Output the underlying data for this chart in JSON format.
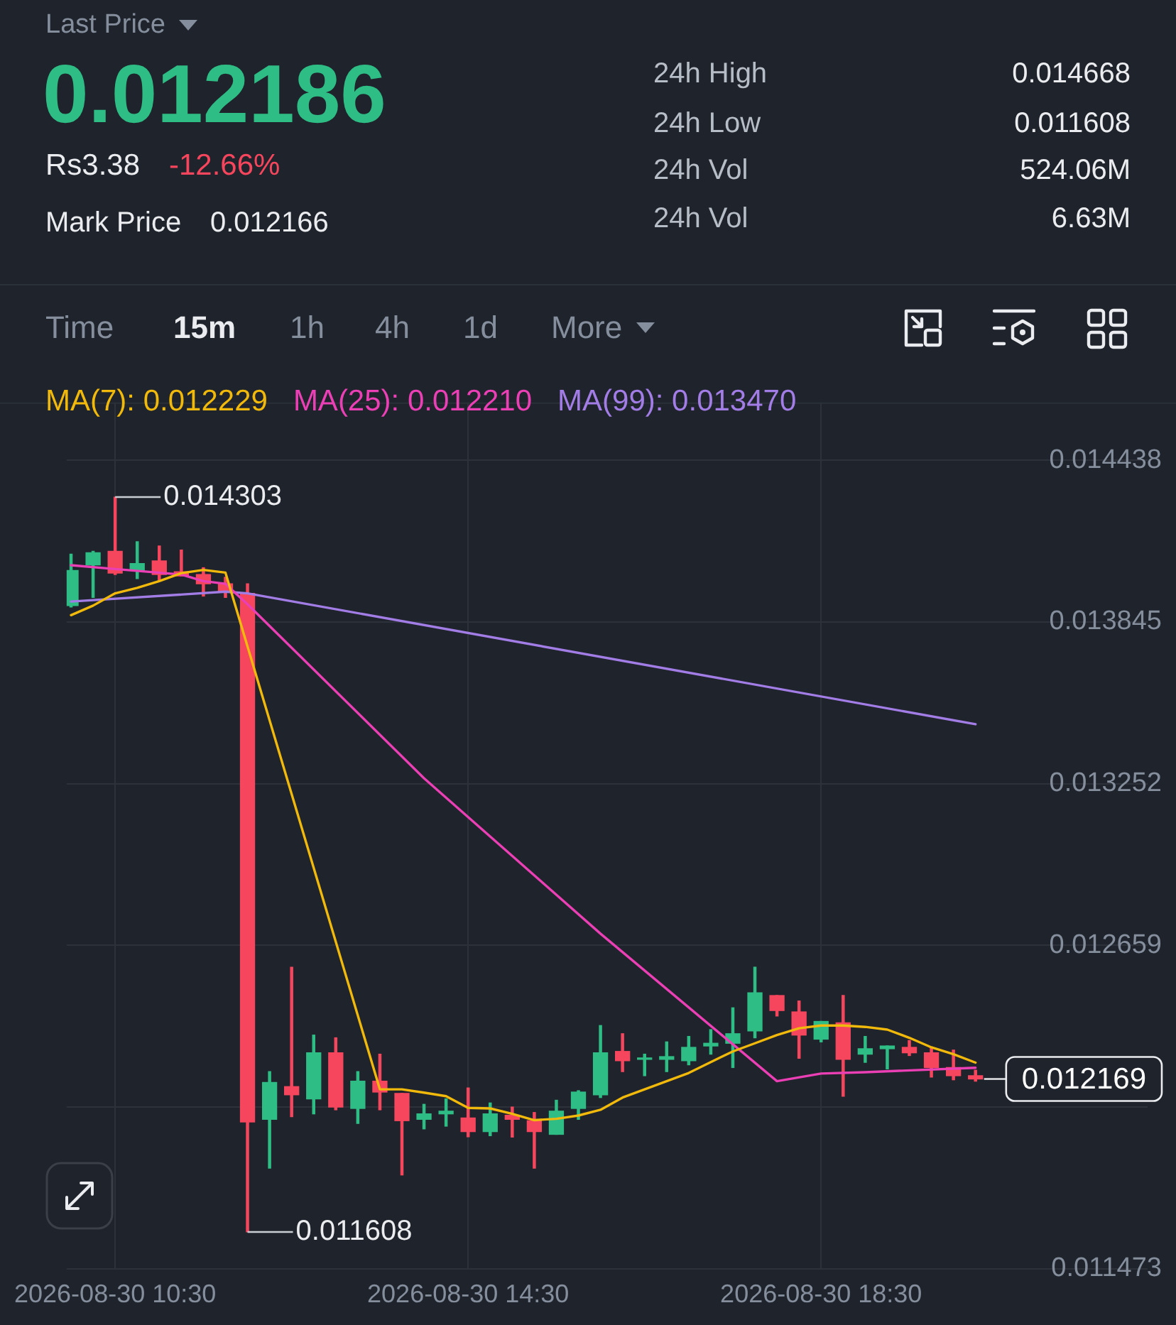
{
  "chart_data": [
    {
      "type": "other",
      "annotations": [
        "Last Price",
        "0.012186",
        "Rs3.38",
        "-12.66%",
        "Mark Price",
        "0.012166",
        "24h High",
        "0.014668",
        "24h Low",
        "0.011608",
        "24h Vol",
        "524.06M",
        "24h Vol",
        "6.63M",
        "Time",
        "15m",
        "1h",
        "4h",
        "1d",
        "More"
      ]
    },
    {
      "type": "candlestick",
      "x": [
        "2026-08-30T10:00",
        "2026-08-30T10:15",
        "2026-08-30T10:30",
        "2026-08-30T10:45",
        "2026-08-30T11:00",
        "2026-08-30T11:15",
        "2026-08-30T11:30",
        "2026-08-30T11:45",
        "2026-08-30T12:00",
        "2026-08-30T12:15",
        "2026-08-30T12:30",
        "2026-08-30T12:45",
        "2026-08-30T13:00",
        "2026-08-30T13:15",
        "2026-08-30T13:30",
        "2026-08-30T13:45",
        "2026-08-30T14:00",
        "2026-08-30T14:15",
        "2026-08-30T14:30",
        "2026-08-30T14:45",
        "2026-08-30T15:00",
        "2026-08-30T15:15",
        "2026-08-30T15:30",
        "2026-08-30T15:45",
        "2026-08-30T16:00",
        "2026-08-30T16:15",
        "2026-08-30T16:30",
        "2026-08-30T16:45",
        "2026-08-30T17:00",
        "2026-08-30T17:15",
        "2026-08-30T17:30",
        "2026-08-30T17:45",
        "2026-08-30T18:00",
        "2026-08-30T18:15",
        "2026-08-30T18:30",
        "2026-08-30T18:45",
        "2026-08-30T19:00",
        "2026-08-30T19:15",
        "2026-08-30T19:30",
        "2026-08-30T19:45",
        "2026-08-30T20:00",
        "2026-08-30T20:15"
      ],
      "ohlc": [
        [
          0.013905,
          0.014094,
          0.0139,
          0.014034
        ],
        [
          0.014054,
          0.014104,
          0.013935,
          0.014099
        ],
        [
          0.014104,
          0.014303,
          0.014019,
          0.014024
        ],
        [
          0.014034,
          0.014139,
          0.014004,
          0.014059
        ],
        [
          0.014069,
          0.014124,
          0.013995,
          0.014019
        ],
        [
          0.014029,
          0.014109,
          0.014014,
          0.014014
        ],
        [
          0.014019,
          0.014044,
          0.01394,
          0.013985
        ],
        [
          0.013985,
          0.014009,
          0.013935,
          0.013955
        ],
        [
          0.01395,
          0.013985,
          0.011608,
          0.012011
        ],
        [
          0.012021,
          0.012196,
          0.011842,
          0.012156
        ],
        [
          0.012141,
          0.012579,
          0.012031,
          0.012111
        ],
        [
          0.012096,
          0.01233,
          0.012041,
          0.012265
        ],
        [
          0.012265,
          0.01232,
          0.012056,
          0.012066
        ],
        [
          0.012061,
          0.012196,
          0.012006,
          0.012161
        ],
        [
          0.012161,
          0.01226,
          0.012056,
          0.012121
        ],
        [
          0.012116,
          0.012116,
          0.011817,
          0.012016
        ],
        [
          0.012021,
          0.012076,
          0.011986,
          0.012041
        ],
        [
          0.012041,
          0.012096,
          0.011996,
          0.012051
        ],
        [
          0.012026,
          0.012136,
          0.011957,
          0.011976
        ],
        [
          0.011976,
          0.012081,
          0.011961,
          0.012041
        ],
        [
          0.012036,
          0.012066,
          0.011956,
          0.012021
        ],
        [
          0.012016,
          0.012046,
          0.011842,
          0.011976
        ],
        [
          0.011966,
          0.012091,
          0.011966,
          0.012051
        ],
        [
          0.012061,
          0.012126,
          0.012021,
          0.012121
        ],
        [
          0.012111,
          0.012365,
          0.012101,
          0.012265
        ],
        [
          0.01227,
          0.012335,
          0.012196,
          0.012236
        ],
        [
          0.012241,
          0.01226,
          0.012181,
          0.012246
        ],
        [
          0.012241,
          0.012305,
          0.012196,
          0.012251
        ],
        [
          0.012236,
          0.012325,
          0.012221,
          0.012285
        ],
        [
          0.01229,
          0.01235,
          0.01226,
          0.0123
        ],
        [
          0.0123,
          0.01243,
          0.012211,
          0.012335
        ],
        [
          0.012345,
          0.012579,
          0.01232,
          0.012485
        ],
        [
          0.012475,
          0.012475,
          0.0124,
          0.01242
        ],
        [
          0.012415,
          0.012455,
          0.012245,
          0.01233
        ],
        [
          0.012315,
          0.01238,
          0.012305,
          0.01238
        ],
        [
          0.012375,
          0.012475,
          0.012106,
          0.012241
        ],
        [
          0.01226,
          0.012325,
          0.01223,
          0.01228
        ],
        [
          0.01228,
          0.01229,
          0.012206,
          0.01229
        ],
        [
          0.012285,
          0.01231,
          0.012255,
          0.012265
        ],
        [
          0.012265,
          0.012285,
          0.012176,
          0.012211
        ],
        [
          0.012211,
          0.012275,
          0.012166,
          0.012181
        ],
        [
          0.012181,
          0.012201,
          0.012161,
          0.012169
        ]
      ],
      "colors": [
        "#2ebd85",
        "#2ebd85",
        "#f6465d",
        "#2ebd85",
        "#f6465d",
        "#f6465d",
        "#f6465d",
        "#f6465d",
        "#f6465d",
        "#2ebd85",
        "#f6465d",
        "#2ebd85",
        "#f6465d",
        "#2ebd85",
        "#f6465d",
        "#f6465d",
        "#2ebd85",
        "#2ebd85",
        "#f6465d",
        "#2ebd85",
        "#f6465d",
        "#f6465d",
        "#2ebd85",
        "#2ebd85",
        "#2ebd85",
        "#f6465d",
        "#2ebd85",
        "#2ebd85",
        "#2ebd85",
        "#2ebd85",
        "#2ebd85",
        "#2ebd85",
        "#f6465d",
        "#f6465d",
        "#2ebd85",
        "#f6465d",
        "#2ebd85",
        "#2ebd85",
        "#f6465d",
        "#f6465d",
        "#f6465d",
        "#f6465d"
      ],
      "series": [
        {
          "type": "line",
          "name": "MA(7): 0.012229",
          "color": "#f0b90b",
          "x": [
            "2026-08-30T10:00",
            "2026-08-30T10:15",
            "2026-08-30T10:30",
            "2026-08-30T10:45",
            "2026-08-30T11:00",
            "2026-08-30T11:15",
            "2026-08-30T11:30",
            "2026-08-30T11:45",
            "2026-08-30T13:30",
            "2026-08-30T13:45",
            "2026-08-30T14:00",
            "2026-08-30T14:15",
            "2026-08-30T14:30",
            "2026-08-30T14:45",
            "2026-08-30T15:00",
            "2026-08-30T15:15",
            "2026-08-30T15:30",
            "2026-08-30T15:45",
            "2026-08-30T16:00",
            "2026-08-30T16:15",
            "2026-08-30T16:45",
            "2026-08-30T17:00",
            "2026-08-30T17:15",
            "2026-08-30T17:30",
            "2026-08-30T17:45",
            "2026-08-30T18:00",
            "2026-08-30T18:15",
            "2026-08-30T18:30",
            "2026-08-30T18:45",
            "2026-08-30T19:00",
            "2026-08-30T19:15",
            "2026-08-30T19:30",
            "2026-08-30T19:45",
            "2026-08-30T20:00",
            "2026-08-30T20:15"
          ],
          "values": [
            0.01387,
            0.013905,
            0.01395,
            0.01397,
            0.013995,
            0.014024,
            0.014036,
            0.014026,
            0.012131,
            0.012131,
            0.012119,
            0.012106,
            0.012063,
            0.012061,
            0.012041,
            0.012018,
            0.012023,
            0.012035,
            0.012056,
            0.012101,
            0.012161,
            0.012191,
            0.012231,
            0.01227,
            0.0123,
            0.01233,
            0.012355,
            0.012365,
            0.012365,
            0.01236,
            0.01235,
            0.01232,
            0.012285,
            0.01226,
            0.012229
          ]
        },
        {
          "type": "line",
          "name": "MA(25): 0.012210",
          "color": "#eb40b5",
          "x": [
            "2026-08-30T10:00",
            "2026-08-30T10:30",
            "2026-08-30T11:15",
            "2026-08-30T11:30",
            "2026-08-30T11:45",
            "2026-08-30T12:00",
            "2026-08-30T14:00",
            "2026-08-30T16:00",
            "2026-08-30T18:00",
            "2026-08-30T18:30",
            "2026-08-30T19:00",
            "2026-08-30T20:15"
          ],
          "values": [
            0.014053,
            0.014039,
            0.014019,
            0.013995,
            0.013985,
            0.01391,
            0.013272,
            0.012702,
            0.012161,
            0.012189,
            0.012194,
            0.01221
          ]
        },
        {
          "type": "line",
          "name": "MA(99): 0.013470",
          "color": "#a27de6",
          "x": [
            "2026-08-30T10:00",
            "2026-08-30T11:45",
            "2026-08-30T12:00",
            "2026-08-30T20:15"
          ],
          "values": [
            0.01392,
            0.013956,
            0.01395,
            0.01347
          ]
        }
      ],
      "xlim": [
        "2026-08-30T09:57",
        "2026-08-30T22:12"
      ],
      "xticks": [
        {
          "value": "2026-08-30T10:30",
          "label": "2026-08-30 10:30"
        },
        {
          "value": "2026-08-30T14:30",
          "label": "2026-08-30 14:30"
        },
        {
          "value": "2026-08-30T18:30",
          "label": "2026-08-30 18:30"
        }
      ],
      "ylim": [
        0.011473,
        0.01465
      ],
      "yticks": [
        0.014438,
        0.013845,
        0.013252,
        0.012659,
        {
          "value": 0.012066,
          "label": null
        },
        0.011473
      ],
      "grid": true,
      "legend": "top left",
      "ref_lines": [
        {
          "axis": "y",
          "value": 0.012169,
          "label": "0.012169"
        }
      ],
      "annotations": [
        {
          "text": "0.014303",
          "x": "2026-08-30T10:30",
          "y": 0.014303
        },
        {
          "text": "0.011608",
          "x": "2026-08-30T12:00",
          "y": 0.011608
        }
      ]
    }
  ]
}
